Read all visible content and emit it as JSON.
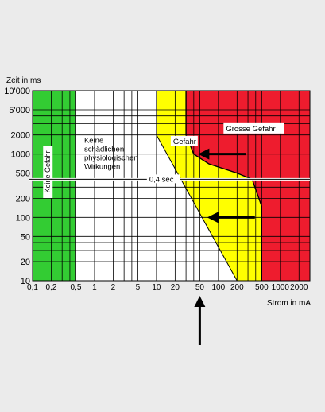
{
  "chart_data": {
    "type": "area",
    "title": "",
    "xlabel": "Strom in mA",
    "ylabel": "Zeit in  ms",
    "x_scale": "log",
    "y_scale": "log",
    "xlim": [
      0.1,
      3000
    ],
    "ylim": [
      10,
      10000
    ],
    "grid": true,
    "x_ticks": [
      0.1,
      0.2,
      0.5,
      1,
      2,
      5,
      10,
      20,
      50,
      100,
      200,
      500,
      1000,
      2000
    ],
    "x_tick_labels": [
      "0,1",
      "0,2",
      "0,5",
      "1",
      "2",
      "5",
      "10",
      "20",
      "50",
      "100",
      "200",
      "500",
      "1000",
      "2000"
    ],
    "y_ticks": [
      10,
      20,
      50,
      100,
      200,
      500,
      1000,
      2000,
      5000,
      10000
    ],
    "y_tick_labels": [
      "10",
      "20",
      "50",
      "100",
      "200",
      "500",
      "1000",
      "2000",
      "5'000",
      "10'000"
    ],
    "colors": {
      "green_zone": "#33cc33",
      "white_zone": "#ffffff",
      "yellow_zone": "#ffff00",
      "red_zone": "#ee1c2e",
      "grid": "#000000",
      "background": "#ebebeb"
    },
    "zones": [
      {
        "label": "Keine Gefahr",
        "color": "#33cc33",
        "boundary_x": 0.5
      },
      {
        "label": "Keine schädlichen physiologischen Wirkungen",
        "color": "#ffffff",
        "curve": [
          [
            10,
            10000
          ],
          [
            10,
            2000
          ],
          [
            200,
            10
          ]
        ]
      },
      {
        "label": "Gefahr",
        "color": "#ffff00",
        "curve": [
          [
            30,
            10000
          ],
          [
            30,
            2000
          ],
          [
            40,
            1000
          ],
          [
            70,
            700
          ],
          [
            200,
            500
          ],
          [
            350,
            400
          ],
          [
            500,
            150
          ],
          [
            500,
            10
          ]
        ]
      },
      {
        "label": "Grosse Gefahr",
        "color": "#ee1c2e"
      }
    ],
    "reference_line": {
      "label": "0,4 sec",
      "y": 400
    },
    "annotations": [
      {
        "type": "arrow",
        "direction": "left",
        "tip": [
          50,
          1000
        ]
      },
      {
        "type": "arrow",
        "direction": "left",
        "tip": [
          70,
          100
        ]
      },
      {
        "type": "arrow",
        "direction": "up",
        "tip_x": 50
      }
    ]
  }
}
